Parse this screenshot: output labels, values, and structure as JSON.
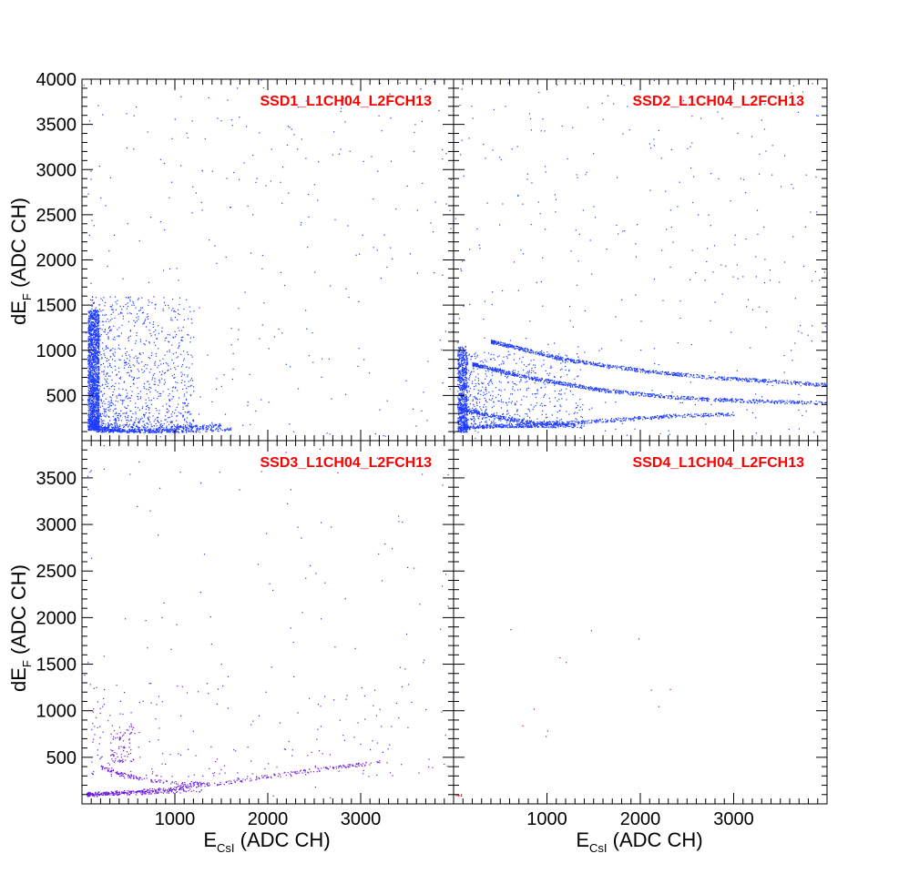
{
  "chart_data": [
    {
      "type": "scatter",
      "title": "SSD1_L1CH04_L2FCH13",
      "xlim": [
        0,
        4000
      ],
      "ylim": [
        0,
        4000
      ],
      "ylabel": "dE",
      "ylabel_sub": "F",
      "ylabel_unit": "(ADC CH)",
      "xticks": [
        1000,
        2000,
        3000
      ],
      "yticks": [
        500,
        1000,
        1500,
        2000,
        2500,
        3000,
        3500,
        4000
      ],
      "point_color": "#1f3cff",
      "bands": [
        {
          "x": [
            80,
            200,
            400,
            700,
            1000,
            1500
          ],
          "y": [
            175,
            140,
            125,
            118,
            140,
            175
          ]
        },
        {
          "x": [
            150,
            400,
            800,
            1200,
            1600
          ],
          "y": [
            120,
            112,
            110,
            115,
            130
          ]
        }
      ],
      "cluster": {
        "x_range": [
          60,
          180
        ],
        "y_range": [
          120,
          1450
        ],
        "count": 1600
      },
      "scatter_region": {
        "x_range": [
          100,
          1200
        ],
        "y_range": [
          150,
          1600
        ],
        "count": 1200
      },
      "noise_count": 300
    },
    {
      "type": "scatter",
      "title": "SSD2_L1CH04_L2FCH13",
      "xlim": [
        0,
        4000
      ],
      "ylim": [
        0,
        4000
      ],
      "xticks": [
        1000,
        2000,
        3000
      ],
      "yticks": [
        500,
        1000,
        1500,
        2000,
        2500,
        3000,
        3500,
        4000
      ],
      "point_color": "#1f3cff",
      "bands": [
        {
          "x": [
            60,
            300,
            600,
            900,
            1200,
            1800,
            2400,
            3000
          ],
          "y": [
            360,
            300,
            240,
            190,
            200,
            240,
            280,
            300
          ]
        },
        {
          "x": [
            60,
            300,
            700,
            1000,
            1300
          ],
          "y": [
            140,
            160,
            170,
            175,
            180
          ]
        },
        {
          "x": [
            200,
            800,
            1600,
            2400,
            3200,
            4000
          ],
          "y": [
            850,
            700,
            560,
            480,
            440,
            420
          ]
        },
        {
          "x": [
            400,
            1200,
            2000,
            2800,
            3600,
            4000
          ],
          "y": [
            1100,
            900,
            780,
            700,
            650,
            620
          ]
        }
      ],
      "cluster": {
        "x_range": [
          40,
          140
        ],
        "y_range": [
          100,
          1050
        ],
        "count": 700
      },
      "scatter_region": {
        "x_range": [
          100,
          1400
        ],
        "y_range": [
          150,
          1000
        ],
        "count": 700
      },
      "noise_count": 350
    },
    {
      "type": "scatter",
      "title": "SSD3_L1CH04_L2FCH13",
      "xlim": [
        0,
        4000
      ],
      "ylim": [
        0,
        3900
      ],
      "xlabel": "E",
      "xlabel_sub": "CsI",
      "xlabel_unit": "(ADC CH)",
      "ylabel": "dE",
      "ylabel_sub": "F",
      "ylabel_unit": "(ADC CH)",
      "xticks": [
        1000,
        2000,
        3000
      ],
      "yticks": [
        500,
        1000,
        1500,
        2000,
        2500,
        3000,
        3500
      ],
      "point_color": "#6a18e0",
      "bands": [
        {
          "x": [
            200,
            400,
            600,
            800,
            1000,
            1300
          ],
          "y": [
            400,
            330,
            280,
            250,
            230,
            220
          ]
        },
        {
          "x": [
            50,
            300,
            600,
            900,
            1200,
            1600,
            2000,
            2600,
            3200
          ],
          "y": [
            110,
            120,
            140,
            160,
            200,
            240,
            300,
            380,
            450
          ]
        },
        {
          "x": [
            60,
            500,
            1000,
            1300
          ],
          "y": [
            100,
            120,
            140,
            150
          ]
        }
      ],
      "cluster": {
        "x_range": [
          300,
          550
        ],
        "y_range": [
          450,
          850
        ],
        "count": 80
      },
      "scatter_region": {
        "x_range": [
          100,
          4000
        ],
        "y_range": [
          300,
          1300
        ],
        "count": 180
      },
      "noise_count": 120
    },
    {
      "type": "scatter",
      "title": "SSD4_L1CH04_L2FCH13",
      "xlim": [
        0,
        4000
      ],
      "ylim": [
        0,
        3900
      ],
      "xlabel": "E",
      "xlabel_sub": "CsI",
      "xlabel_unit": "(ADC CH)",
      "xticks": [
        1000,
        2000,
        3000
      ],
      "yticks": [],
      "point_color": "#d01010",
      "bands": [],
      "cluster": {
        "x_range": [
          20,
          80
        ],
        "y_range": [
          90,
          110
        ],
        "count": 6
      },
      "scatter_region": {
        "x_range": [
          600,
          2500
        ],
        "y_range": [
          700,
          2100
        ],
        "count": 12
      },
      "noise_count": 0
    }
  ]
}
